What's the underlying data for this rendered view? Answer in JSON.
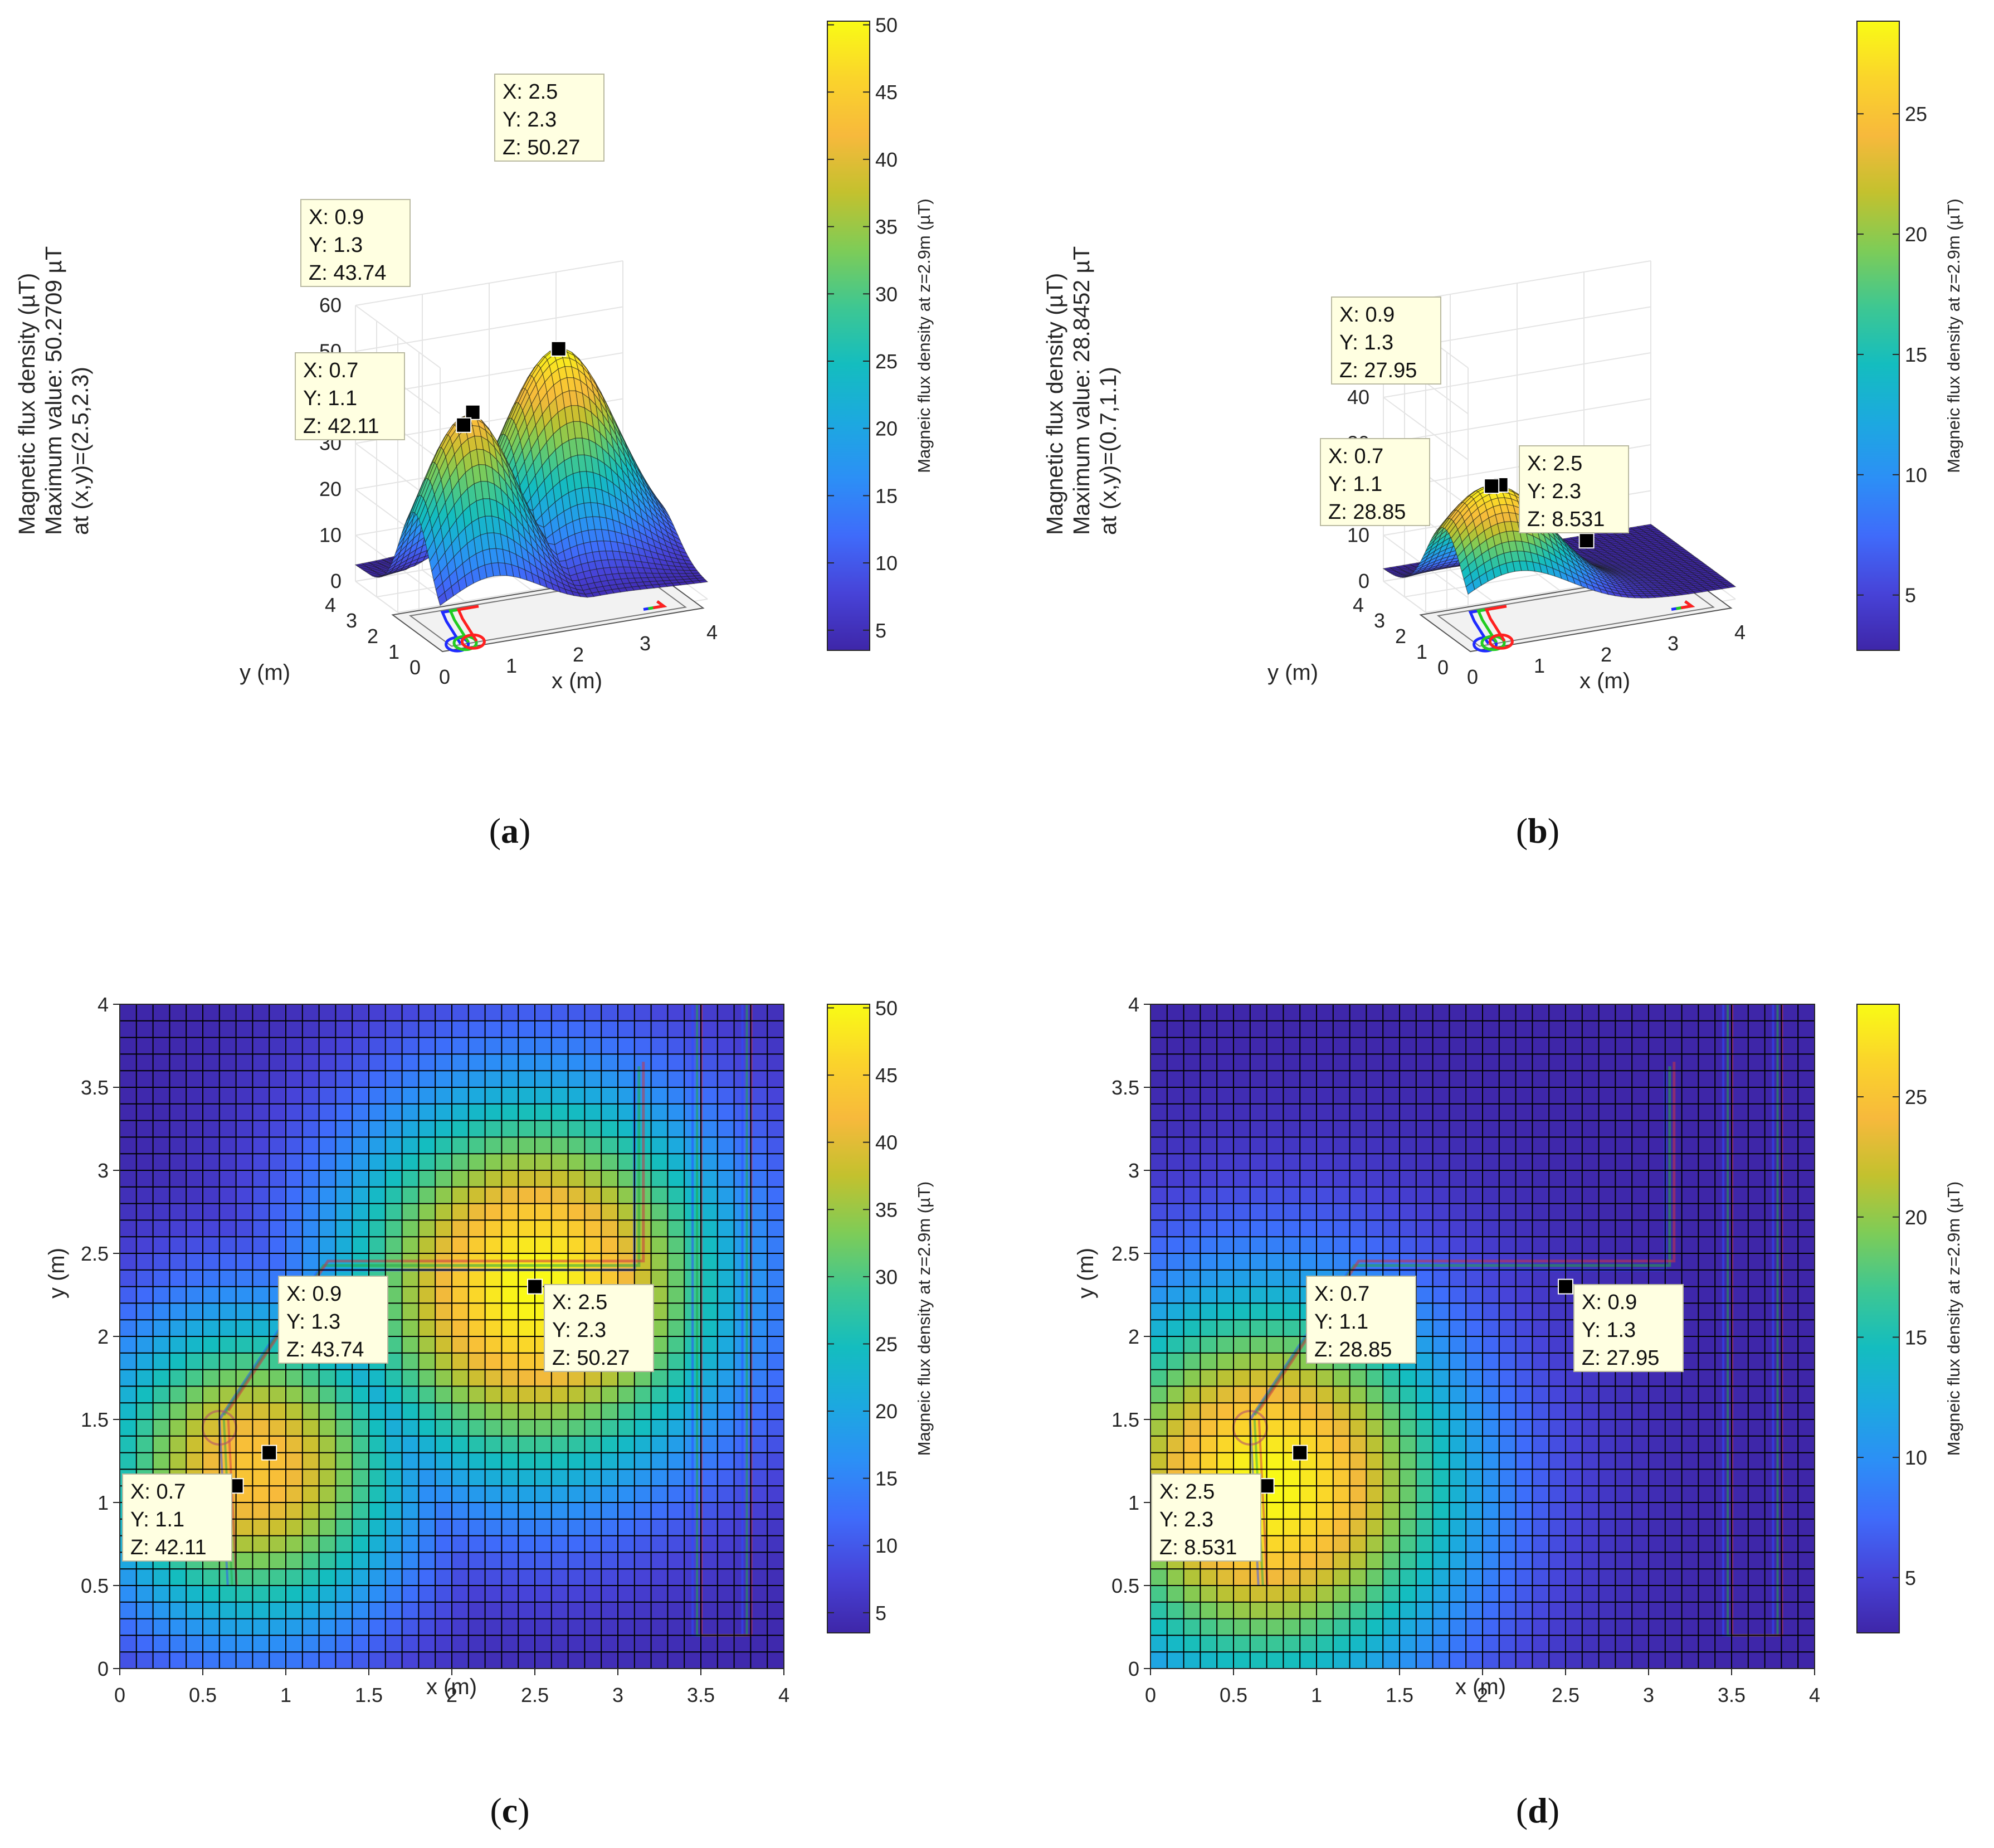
{
  "figure": {
    "captions": [
      "(a)",
      "(b)",
      "(c)",
      "(d)"
    ],
    "caption_parts": [
      {
        "open": "(",
        "letter": "a",
        "close": ")"
      },
      {
        "open": "(",
        "letter": "b",
        "close": ")"
      },
      {
        "open": "(",
        "letter": "c",
        "close": ")"
      },
      {
        "open": "(",
        "letter": "d",
        "close": ")"
      }
    ]
  },
  "colormap": [
    "#3e26a8",
    "#4743d8",
    "#3f6bfa",
    "#2c8ff6",
    "#1ca9df",
    "#14bdbf",
    "#3ec792",
    "#7ecc57",
    "#c3c12e",
    "#f7b93c",
    "#fad42b",
    "#f9fb15"
  ],
  "chart_data": [
    {
      "id": "a",
      "type": "surface3d",
      "title_lines": [
        "Magnetic flux density (µT)",
        "Maximum value: 50.2709 µT",
        "at (x,y)=(2.5,2.3)"
      ],
      "xlabel": "x (m)",
      "ylabel": "y (m)",
      "xlim": [
        0,
        4
      ],
      "ylim": [
        0,
        4
      ],
      "zlim": [
        0,
        60
      ],
      "xticks": [
        "0",
        "1",
        "2",
        "3",
        "4"
      ],
      "yticks": [
        "0",
        "1",
        "2",
        "3",
        "4"
      ],
      "zticks": [
        "0",
        "10",
        "20",
        "30",
        "40",
        "50",
        "60"
      ],
      "peak_z": 50.27,
      "peaks": [
        {
          "x": 2.5,
          "y": 2.3,
          "z": 50.27
        },
        {
          "x": 0.8,
          "y": 1.2,
          "z": 43.7
        }
      ],
      "colorbar": {
        "label": "Magneic flux density at z=2.9m (µT)",
        "min": 3.5,
        "max": 50.27,
        "ticks": [
          "5",
          "10",
          "15",
          "20",
          "25",
          "30",
          "35",
          "40",
          "45",
          "50"
        ]
      },
      "datatips": [
        {
          "x": 2.5,
          "y": 2.3,
          "z": 50.27,
          "lines": [
            "X: 2.5",
            "Y: 2.3",
            "Z: 50.27"
          ]
        },
        {
          "x": 0.9,
          "y": 1.3,
          "z": 43.74,
          "lines": [
            "X: 0.9",
            "Y: 1.3",
            "Z: 43.74"
          ]
        },
        {
          "x": 0.7,
          "y": 1.1,
          "z": 42.11,
          "lines": [
            "X: 0.7",
            "Y: 1.1",
            "Z: 42.11"
          ]
        }
      ]
    },
    {
      "id": "b",
      "type": "surface3d",
      "title_lines": [
        "Magnetic flux density (µT)",
        "Maximum value: 28.8452 µT",
        "at (x,y)=(0.7,1.1)"
      ],
      "xlabel": "x (m)",
      "ylabel": "y (m)",
      "xlim": [
        0,
        4
      ],
      "ylim": [
        0,
        4
      ],
      "zlim": [
        0,
        60
      ],
      "xticks": [
        "0",
        "1",
        "2",
        "3",
        "4"
      ],
      "yticks": [
        "0",
        "1",
        "2",
        "3",
        "4"
      ],
      "zticks": [
        "0",
        "10",
        "20",
        "30",
        "40",
        "50",
        "60"
      ],
      "peak_z": 28.85,
      "peaks": [
        {
          "x": 0.7,
          "y": 1.1,
          "z": 28.85
        }
      ],
      "colorbar": {
        "label": "Magneic flux density at z=2.9m (µT)",
        "min": 2.7,
        "max": 28.85,
        "ticks": [
          "5",
          "10",
          "15",
          "20",
          "25"
        ]
      },
      "datatips": [
        {
          "x": 0.9,
          "y": 1.3,
          "z": 27.95,
          "lines": [
            "X: 0.9",
            "Y: 1.3",
            "Z: 27.95"
          ]
        },
        {
          "x": 0.7,
          "y": 1.1,
          "z": 28.85,
          "lines": [
            "X: 0.7",
            "Y: 1.1",
            "Z: 28.85"
          ]
        },
        {
          "x": 2.5,
          "y": 2.3,
          "z": 8.531,
          "lines": [
            "X: 2.5",
            "Y: 2.3",
            "Z: 8.531"
          ]
        }
      ]
    },
    {
      "id": "c",
      "type": "heatmap",
      "xlabel": "x (m)",
      "ylabel": "y (m)",
      "xlim": [
        0,
        4
      ],
      "ylim": [
        0,
        4
      ],
      "xticks": [
        "0",
        "0.5",
        "1",
        "1.5",
        "2",
        "2.5",
        "3",
        "3.5",
        "4"
      ],
      "yticks": [
        "0",
        "0.5",
        "1",
        "1.5",
        "2",
        "2.5",
        "3",
        "3.5",
        "4"
      ],
      "grid_cells": 40,
      "peaks": [
        {
          "x": 2.5,
          "y": 2.3,
          "z": 50.27
        },
        {
          "x": 0.8,
          "y": 1.2,
          "z": 43.7
        }
      ],
      "colorbar": {
        "label": "Magneic flux density at z=2.9m (µT)",
        "min": 3.5,
        "max": 50.27,
        "ticks": [
          "5",
          "10",
          "15",
          "20",
          "25",
          "30",
          "35",
          "40",
          "45",
          "50"
        ]
      },
      "datatips": [
        {
          "x": 2.5,
          "y": 2.3,
          "z": 50.27,
          "lines": [
            "X: 2.5",
            "Y: 2.3",
            "Z: 50.27"
          ]
        },
        {
          "x": 0.9,
          "y": 1.3,
          "z": 43.74,
          "lines": [
            "X: 0.9",
            "Y: 1.3",
            "Z: 43.74"
          ]
        },
        {
          "x": 0.7,
          "y": 1.1,
          "z": 42.11,
          "lines": [
            "X: 0.7",
            "Y: 1.1",
            "Z: 42.11"
          ]
        }
      ]
    },
    {
      "id": "d",
      "type": "heatmap",
      "xlabel": "x (m)",
      "ylabel": "y (m)",
      "xlim": [
        0,
        4
      ],
      "ylim": [
        0,
        4
      ],
      "xticks": [
        "0",
        "0.5",
        "1",
        "1.5",
        "2",
        "2.5",
        "3",
        "3.5",
        "4"
      ],
      "yticks": [
        "0",
        "0.5",
        "1",
        "1.5",
        "2",
        "2.5",
        "3",
        "3.5",
        "4"
      ],
      "grid_cells": 40,
      "peaks": [
        {
          "x": 0.7,
          "y": 1.1,
          "z": 28.85
        }
      ],
      "colorbar": {
        "label": "Magneic flux density at z=2.9m (µT)",
        "min": 2.7,
        "max": 28.85,
        "ticks": [
          "5",
          "10",
          "15",
          "20",
          "25"
        ]
      },
      "datatips": [
        {
          "x": 0.9,
          "y": 1.3,
          "z": 27.95,
          "lines": [
            "X: 0.9",
            "Y: 1.3",
            "Z: 27.95"
          ]
        },
        {
          "x": 0.7,
          "y": 1.1,
          "z": 28.85,
          "lines": [
            "X: 0.7",
            "Y: 1.1",
            "Z: 28.85"
          ]
        },
        {
          "x": 2.5,
          "y": 2.3,
          "z": 8.531,
          "lines": [
            "X: 2.5",
            "Y: 2.3",
            "Z: 8.531"
          ]
        }
      ]
    }
  ],
  "cable_path": [
    [
      0.6,
      1.5
    ],
    [
      1.2,
      2.4
    ],
    [
      3.1,
      2.4
    ],
    [
      3.1,
      3.6
    ]
  ],
  "lower_cable_path": [
    [
      0.6,
      1.5
    ],
    [
      0.65,
      0.5
    ]
  ],
  "side_conductor": [
    [
      3.45,
      4.0
    ],
    [
      3.45,
      0.2
    ],
    [
      3.75,
      0.2
    ],
    [
      3.75,
      4.0
    ]
  ]
}
